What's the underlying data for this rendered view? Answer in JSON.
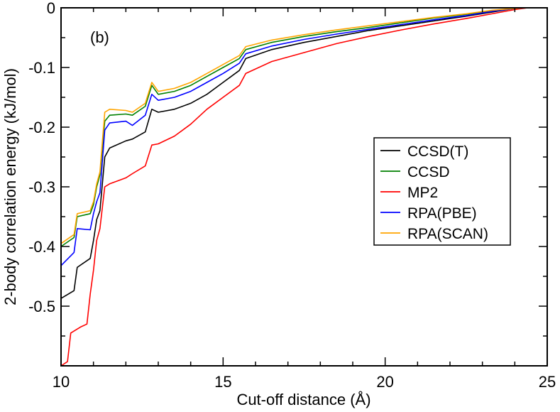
{
  "chart_data": {
    "type": "line",
    "title": "",
    "panel_label": "(b)",
    "xlabel": "Cut-off distance (Å)",
    "ylabel": "2-body correlation energy (kJ/mol)",
    "xlim": [
      10,
      25
    ],
    "ylim": [
      -0.6,
      0
    ],
    "x_ticks": [
      10,
      15,
      20,
      25
    ],
    "x_tick_labels": [
      "10",
      "15",
      "20",
      "25"
    ],
    "y_ticks": [
      0,
      -0.1,
      -0.2,
      -0.3,
      -0.4,
      -0.5
    ],
    "y_tick_labels": [
      "0",
      "-0.1",
      "-0.2",
      "-0.3",
      "-0.4",
      "-0.5"
    ],
    "legend_position": "right",
    "series": [
      {
        "name": "CCSD(T)",
        "color": "#000000",
        "x": [
          10.0,
          10.4,
          10.5,
          10.9,
          11.0,
          11.1,
          11.2,
          11.35,
          11.5,
          12.0,
          12.2,
          12.6,
          12.8,
          13.0,
          13.5,
          14.0,
          14.5,
          15.0,
          15.5,
          15.7,
          16.5,
          17.5,
          18.5,
          19.5,
          20.5,
          21.5,
          22.5,
          23.3,
          24.0,
          24.4
        ],
        "y": [
          -0.487,
          -0.474,
          -0.435,
          -0.42,
          -0.39,
          -0.355,
          -0.34,
          -0.25,
          -0.235,
          -0.223,
          -0.22,
          -0.208,
          -0.17,
          -0.175,
          -0.17,
          -0.16,
          -0.145,
          -0.125,
          -0.105,
          -0.085,
          -0.07,
          -0.058,
          -0.048,
          -0.038,
          -0.03,
          -0.022,
          -0.014,
          -0.007,
          -0.001,
          0.0
        ]
      },
      {
        "name": "CCSD",
        "color": "#008000",
        "x": [
          10.0,
          10.4,
          10.5,
          10.9,
          11.0,
          11.1,
          11.2,
          11.35,
          11.5,
          12.0,
          12.2,
          12.6,
          12.8,
          13.0,
          13.5,
          14.0,
          14.5,
          15.0,
          15.5,
          15.7,
          16.5,
          17.5,
          18.5,
          19.5,
          20.5,
          21.5,
          22.5,
          23.3,
          24.0,
          24.4
        ],
        "y": [
          -0.4,
          -0.385,
          -0.35,
          -0.345,
          -0.33,
          -0.3,
          -0.28,
          -0.19,
          -0.18,
          -0.178,
          -0.18,
          -0.165,
          -0.13,
          -0.145,
          -0.14,
          -0.13,
          -0.115,
          -0.1,
          -0.085,
          -0.07,
          -0.058,
          -0.048,
          -0.04,
          -0.033,
          -0.025,
          -0.017,
          -0.011,
          -0.005,
          -0.001,
          0.0
        ]
      },
      {
        "name": "MP2",
        "color": "#ff0000",
        "x": [
          10.0,
          10.2,
          10.3,
          10.6,
          10.8,
          10.9,
          11.0,
          11.1,
          11.2,
          11.35,
          11.5,
          12.0,
          12.2,
          12.6,
          12.8,
          13.0,
          13.5,
          14.0,
          14.5,
          15.0,
          15.5,
          15.7,
          16.5,
          17.5,
          18.5,
          19.5,
          20.5,
          21.5,
          22.5,
          23.3,
          24.0,
          24.4
        ],
        "y": [
          -0.6,
          -0.593,
          -0.545,
          -0.535,
          -0.53,
          -0.48,
          -0.44,
          -0.39,
          -0.37,
          -0.3,
          -0.295,
          -0.285,
          -0.278,
          -0.265,
          -0.23,
          -0.228,
          -0.215,
          -0.195,
          -0.17,
          -0.15,
          -0.13,
          -0.11,
          -0.09,
          -0.075,
          -0.06,
          -0.048,
          -0.037,
          -0.027,
          -0.018,
          -0.01,
          -0.003,
          0.0
        ]
      },
      {
        "name": "RPA(PBE)",
        "color": "#0000ff",
        "x": [
          10.0,
          10.4,
          10.5,
          10.9,
          11.0,
          11.1,
          11.2,
          11.35,
          11.5,
          12.0,
          12.2,
          12.6,
          12.8,
          13.0,
          13.5,
          14.0,
          14.5,
          15.0,
          15.5,
          15.7,
          16.5,
          17.5,
          18.5,
          19.5,
          20.5,
          21.5,
          22.5,
          23.3,
          24.0,
          24.4
        ],
        "y": [
          -0.432,
          -0.41,
          -0.37,
          -0.372,
          -0.345,
          -0.325,
          -0.31,
          -0.205,
          -0.193,
          -0.19,
          -0.197,
          -0.18,
          -0.145,
          -0.155,
          -0.15,
          -0.14,
          -0.125,
          -0.11,
          -0.093,
          -0.077,
          -0.064,
          -0.053,
          -0.044,
          -0.036,
          -0.028,
          -0.02,
          -0.013,
          -0.006,
          -0.001,
          0.0
        ]
      },
      {
        "name": "RPA(SCAN)",
        "color": "#ffa500",
        "x": [
          10.0,
          10.4,
          10.5,
          10.9,
          11.0,
          11.1,
          11.2,
          11.35,
          11.5,
          12.0,
          12.2,
          12.6,
          12.8,
          13.0,
          13.5,
          14.0,
          14.5,
          15.0,
          15.5,
          15.7,
          16.5,
          17.5,
          18.5,
          19.5,
          20.5,
          21.5,
          22.5,
          23.3,
          24.0,
          24.4
        ],
        "y": [
          -0.395,
          -0.38,
          -0.345,
          -0.34,
          -0.325,
          -0.295,
          -0.275,
          -0.175,
          -0.17,
          -0.172,
          -0.175,
          -0.16,
          -0.125,
          -0.14,
          -0.135,
          -0.125,
          -0.11,
          -0.095,
          -0.08,
          -0.065,
          -0.054,
          -0.045,
          -0.037,
          -0.03,
          -0.023,
          -0.016,
          -0.01,
          -0.004,
          -0.001,
          0.0
        ]
      }
    ]
  }
}
